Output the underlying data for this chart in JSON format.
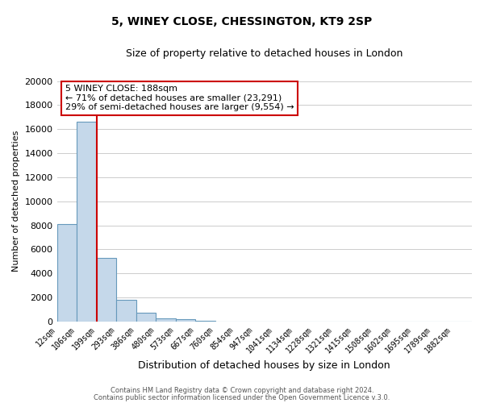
{
  "title": "5, WINEY CLOSE, CHESSINGTON, KT9 2SP",
  "subtitle": "Size of property relative to detached houses in London",
  "xlabel": "Distribution of detached houses by size in London",
  "ylabel": "Number of detached properties",
  "bar_labels": [
    "12sqm",
    "106sqm",
    "199sqm",
    "293sqm",
    "386sqm",
    "480sqm",
    "573sqm",
    "667sqm",
    "760sqm",
    "854sqm",
    "947sqm",
    "1041sqm",
    "1134sqm",
    "1228sqm",
    "1321sqm",
    "1415sqm",
    "1508sqm",
    "1602sqm",
    "1695sqm",
    "1789sqm",
    "1882sqm"
  ],
  "bar_values": [
    8100,
    16600,
    5300,
    1800,
    750,
    300,
    200,
    100,
    0,
    0,
    0,
    0,
    0,
    0,
    0,
    0,
    0,
    0,
    0,
    0,
    0
  ],
  "bar_color": "#c5d8ea",
  "bar_edge_color": "#6699bb",
  "property_line_x": 199,
  "property_line_label": "5 WINEY CLOSE: 188sqm",
  "annotation_line1": "← 71% of detached houses are smaller (23,291)",
  "annotation_line2": "29% of semi-detached houses are larger (9,554) →",
  "annotation_box_color": "#ffffff",
  "annotation_box_edge_color": "#cc0000",
  "property_line_color": "#cc0000",
  "ylim": [
    0,
    20000
  ],
  "yticks": [
    0,
    2000,
    4000,
    6000,
    8000,
    10000,
    12000,
    14000,
    16000,
    18000,
    20000
  ],
  "grid_color": "#cccccc",
  "background_color": "#ffffff",
  "footer_line1": "Contains HM Land Registry data © Crown copyright and database right 2024.",
  "footer_line2": "Contains public sector information licensed under the Open Government Licence v.3.0."
}
